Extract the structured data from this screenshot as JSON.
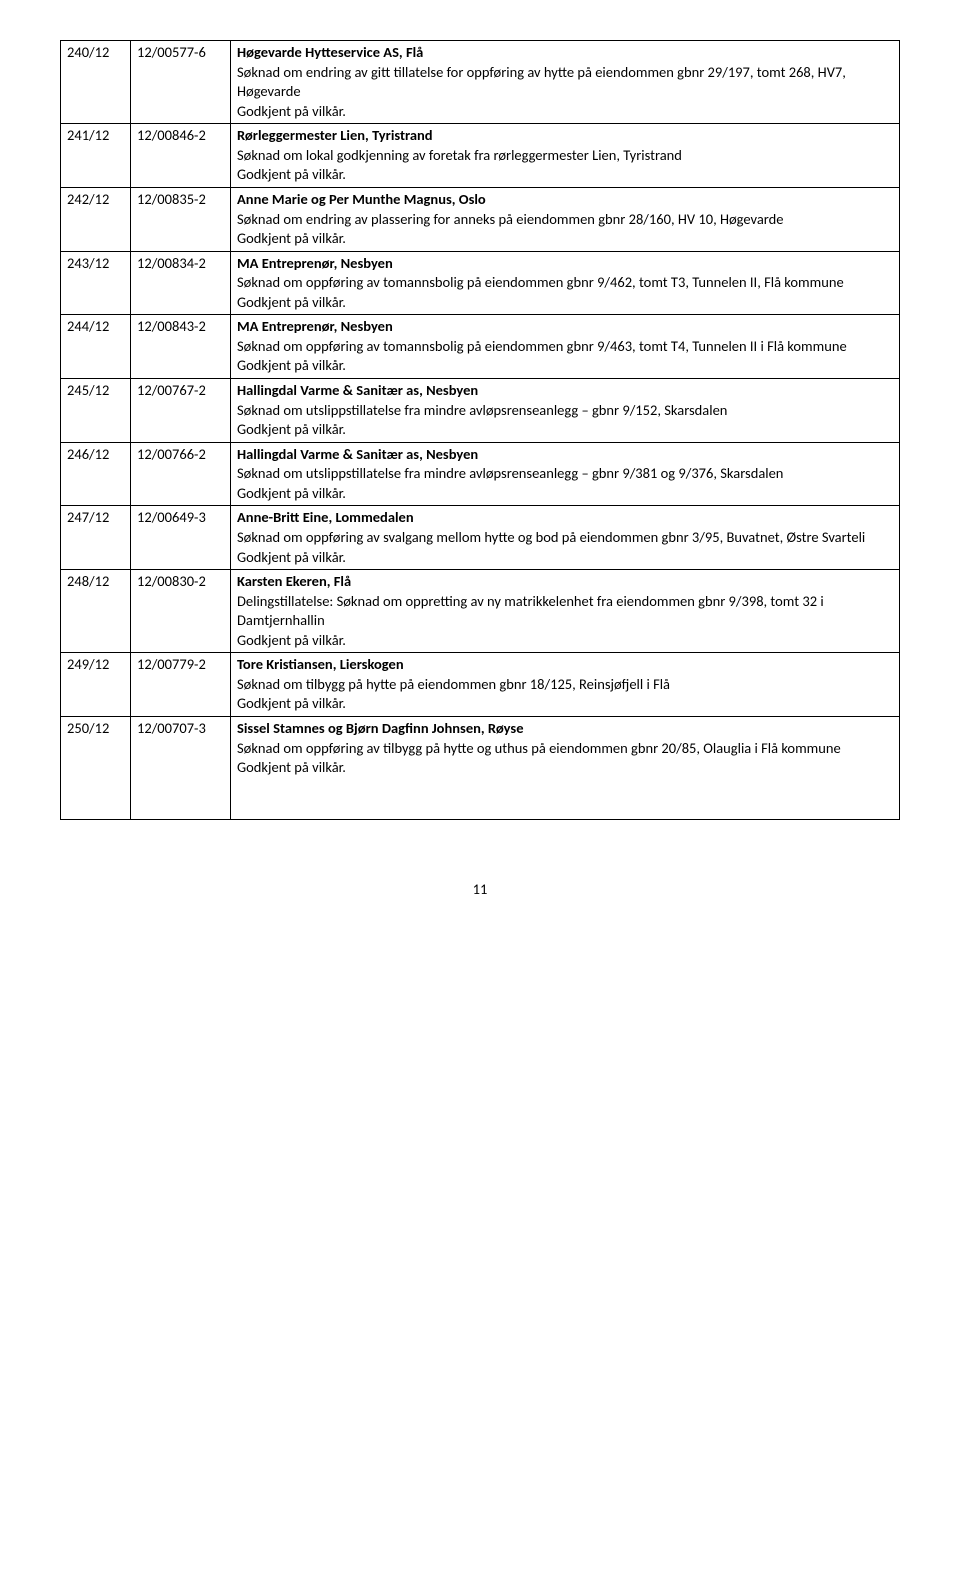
{
  "rows": [
    {
      "c1": "240/12",
      "c2": "12/00577-6",
      "title": "Høgevarde Hytteservice AS, Flå",
      "desc": "Søknad om endring av gitt tillatelse for oppføring av hytte på eiendommen gbnr 29/197, tomt 268, HV7, Høgevarde",
      "status": "Godkjent på vilkår."
    },
    {
      "c1": "241/12",
      "c2": "12/00846-2",
      "title": "Rørleggermester Lien, Tyristrand",
      "desc": "Søknad om lokal godkjenning av foretak fra rørleggermester Lien, Tyristrand",
      "status": "Godkjent på vilkår."
    },
    {
      "c1": "242/12",
      "c2": "12/00835-2",
      "title": "Anne Marie og Per Munthe Magnus, Oslo",
      "desc": "Søknad om endring av plassering for anneks på eiendommen gbnr 28/160, HV 10, Høgevarde",
      "status": "Godkjent på vilkår."
    },
    {
      "c1": "243/12",
      "c2": "12/00834-2",
      "title": "MA Entreprenør, Nesbyen",
      "desc": "Søknad om oppføring av tomannsbolig på eiendommen gbnr 9/462, tomt T3, Tunnelen II, Flå kommune",
      "status": "Godkjent på vilkår."
    },
    {
      "c1": "244/12",
      "c2": "12/00843-2",
      "title": "MA Entreprenør, Nesbyen",
      "desc": "Søknad om oppføring av tomannsbolig på eiendommen gbnr 9/463, tomt T4, Tunnelen II i Flå kommune",
      "status": "Godkjent på vilkår."
    },
    {
      "c1": "245/12",
      "c2": "12/00767-2",
      "title": "Hallingdal Varme & Sanitær as, Nesbyen",
      "desc": "Søknad om utslippstillatelse fra mindre avløpsrenseanlegg – gbnr 9/152, Skarsdalen",
      "status": "Godkjent på vilkår."
    },
    {
      "c1": "246/12",
      "c2": "12/00766-2",
      "title": "Hallingdal Varme & Sanitær as, Nesbyen",
      "desc": "Søknad om utslippstillatelse fra mindre avløpsrenseanlegg – gbnr 9/381 og 9/376, Skarsdalen",
      "status": "Godkjent på vilkår."
    },
    {
      "c1": "247/12",
      "c2": "12/00649-3",
      "title": "Anne-Britt Eine, Lommedalen",
      "desc": "Søknad om oppføring av svalgang mellom hytte og bod på eiendommen gbnr 3/95, Buvatnet, Østre Svarteli",
      "status": "Godkjent på vilkår."
    },
    {
      "c1": "248/12",
      "c2": "12/00830-2",
      "title": "Karsten Ekeren, Flå",
      "desc": "Delingstillatelse: Søknad om oppretting av ny matrikkelenhet fra eiendommen gbnr 9/398, tomt 32 i Damtjernhallin",
      "status": "Godkjent på vilkår."
    },
    {
      "c1": "249/12",
      "c2": "12/00779-2",
      "title": "Tore Kristiansen, Lierskogen",
      "desc": "Søknad om tilbygg på hytte på eiendommen gbnr 18/125, Reinsjøfjell i Flå",
      "status": "Godkjent på vilkår."
    },
    {
      "c1": "250/12",
      "c2": "12/00707-3",
      "title": "Sissel Stamnes og Bjørn Dagfinn Johnsen, Røyse",
      "desc": "Søknad om oppføring av tilbygg på hytte og uthus på eiendommen gbnr 20/85, Olauglia i Flå kommune",
      "status": "Godkjent på vilkår.",
      "extraSpace": true
    }
  ],
  "pageNumber": "11"
}
